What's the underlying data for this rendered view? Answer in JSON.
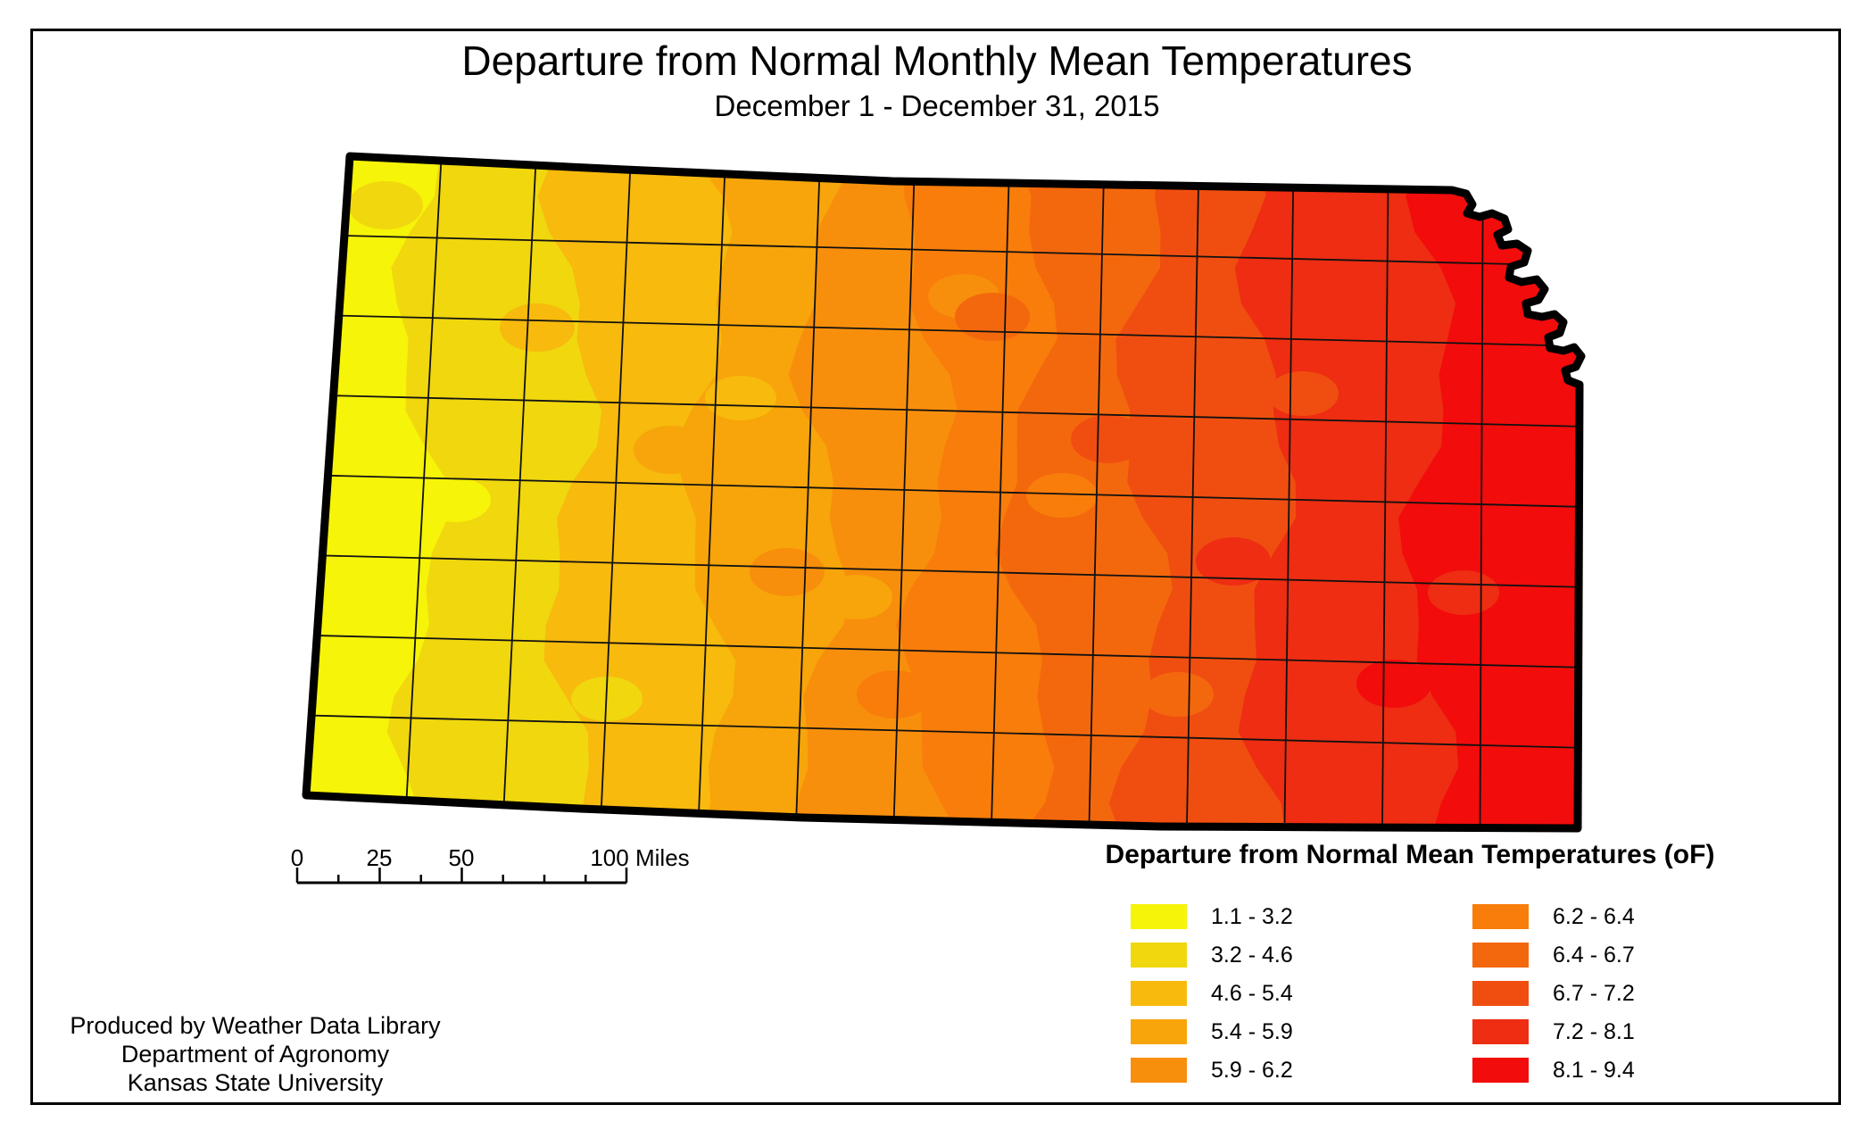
{
  "title": "Departure from Normal Monthly Mean Temperatures",
  "subtitle": "December 1 - December 31, 2015",
  "scale_bar": {
    "t0": "0",
    "t25": "25",
    "t50": "50",
    "t100": "100",
    "unit": "Miles"
  },
  "legend": {
    "title": "Departure from Normal Mean Temperatures (oF)",
    "classes": [
      {
        "range": "1.1 - 3.2",
        "color": "#F6F408"
      },
      {
        "range": "3.2 - 4.6",
        "color": "#F0D70E"
      },
      {
        "range": "4.6 - 5.4",
        "color": "#F7BA0D"
      },
      {
        "range": "5.4 - 5.9",
        "color": "#F7A50A"
      },
      {
        "range": "5.9 - 6.2",
        "color": "#F88F0C"
      },
      {
        "range": "6.2 - 6.4",
        "color": "#F87D0A"
      },
      {
        "range": "6.4 - 6.7",
        "color": "#F4680D"
      },
      {
        "range": "6.7 - 7.2",
        "color": "#F04E10"
      },
      {
        "range": "7.2 - 8.1",
        "color": "#EE2D12"
      },
      {
        "range": "8.1 - 9.4",
        "color": "#F20C0C"
      }
    ]
  },
  "credits": {
    "line1": "Produced by Weather Data Library",
    "line2": "Department of Agronomy",
    "line3": "Kansas State University"
  }
}
